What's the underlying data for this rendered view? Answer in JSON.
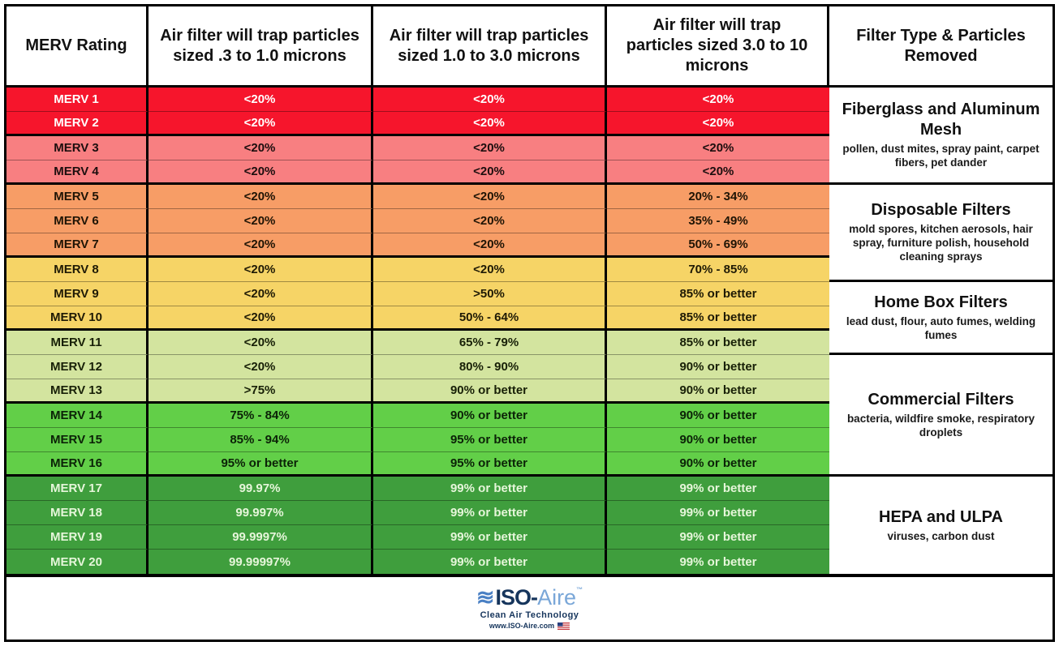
{
  "chart_data": {
    "type": "table",
    "columns": [
      "MERV Rating",
      "Air filter will trap particles sized .3 to 1.0 microns",
      "Air filter will trap particles sized 1.0 to 3.0 microns",
      "Air filter will trap particles sized 3.0 to 10 microns",
      "Filter Type & Particles Removed"
    ],
    "rows": [
      {
        "rating": "MERV 1",
        "micron_03_10": "<20%",
        "micron_10_30": "<20%",
        "micron_30_100": "<20%",
        "band": "red"
      },
      {
        "rating": "MERV 2",
        "micron_03_10": "<20%",
        "micron_10_30": "<20%",
        "micron_30_100": "<20%",
        "band": "red"
      },
      {
        "rating": "MERV 3",
        "micron_03_10": "<20%",
        "micron_10_30": "<20%",
        "micron_30_100": "<20%",
        "band": "salmon"
      },
      {
        "rating": "MERV 4",
        "micron_03_10": "<20%",
        "micron_10_30": "<20%",
        "micron_30_100": "<20%",
        "band": "salmon"
      },
      {
        "rating": "MERV 5",
        "micron_03_10": "<20%",
        "micron_10_30": "<20%",
        "micron_30_100": "20% - 34%",
        "band": "orange"
      },
      {
        "rating": "MERV 6",
        "micron_03_10": "<20%",
        "micron_10_30": "<20%",
        "micron_30_100": "35% - 49%",
        "band": "orange"
      },
      {
        "rating": "MERV 7",
        "micron_03_10": "<20%",
        "micron_10_30": "<20%",
        "micron_30_100": "50% - 69%",
        "band": "orange"
      },
      {
        "rating": "MERV 8",
        "micron_03_10": "<20%",
        "micron_10_30": "<20%",
        "micron_30_100": "70% - 85%",
        "band": "gold"
      },
      {
        "rating": "MERV 9",
        "micron_03_10": "<20%",
        "micron_10_30": ">50%",
        "micron_30_100": "85% or better",
        "band": "gold"
      },
      {
        "rating": "MERV 10",
        "micron_03_10": "<20%",
        "micron_10_30": "50% - 64%",
        "micron_30_100": "85% or better",
        "band": "gold"
      },
      {
        "rating": "MERV 11",
        "micron_03_10": "<20%",
        "micron_10_30": "65% - 79%",
        "micron_30_100": "85% or better",
        "band": "lightgreen"
      },
      {
        "rating": "MERV 12",
        "micron_03_10": "<20%",
        "micron_10_30": "80% - 90%",
        "micron_30_100": "90% or better",
        "band": "lightgreen"
      },
      {
        "rating": "MERV 13",
        "micron_03_10": ">75%",
        "micron_10_30": "90% or better",
        "micron_30_100": "90% or better",
        "band": "lightgreen"
      },
      {
        "rating": "MERV 14",
        "micron_03_10": "75% - 84%",
        "micron_10_30": "90% or better",
        "micron_30_100": "90% or better",
        "band": "green"
      },
      {
        "rating": "MERV 15",
        "micron_03_10": "85% - 94%",
        "micron_10_30": "95% or better",
        "micron_30_100": "90% or better",
        "band": "green"
      },
      {
        "rating": "MERV 16",
        "micron_03_10": "95% or better",
        "micron_10_30": "95% or better",
        "micron_30_100": "90% or better",
        "band": "green"
      },
      {
        "rating": "MERV 17",
        "micron_03_10": "99.97%",
        "micron_10_30": "99% or better",
        "micron_30_100": "99% or better",
        "band": "darkgreen"
      },
      {
        "rating": "MERV 18",
        "micron_03_10": "99.997%",
        "micron_10_30": "99% or better",
        "micron_30_100": "99% or better",
        "band": "darkgreen"
      },
      {
        "rating": "MERV 19",
        "micron_03_10": "99.9997%",
        "micron_10_30": "99% or better",
        "micron_30_100": "99% or better",
        "band": "darkgreen"
      },
      {
        "rating": "MERV 20",
        "micron_03_10": "99.99997%",
        "micron_10_30": "99% or better",
        "micron_30_100": "99% or better",
        "band": "darkgreen"
      }
    ],
    "filter_sections": [
      {
        "title": "Fiberglass and Aluminum Mesh",
        "particles": "pollen, dust mites, spray paint, carpet fibers, pet dander",
        "merv_rows": "MERV 1-4",
        "span": 4
      },
      {
        "title": "Disposable Filters",
        "particles": "mold spores, kitchen aerosols, hair spray, furniture polish, household cleaning sprays",
        "merv_rows": "MERV 5-8",
        "span": 4
      },
      {
        "title": "Home Box Filters",
        "particles": "lead dust, flour, auto fumes, welding fumes",
        "merv_rows": "MERV 9-11",
        "span": 3
      },
      {
        "title": "Commercial Filters",
        "particles": "bacteria, wildfire smoke, respiratory droplets",
        "merv_rows": "MERV 12-16",
        "span": 5
      },
      {
        "title": "HEPA and ULPA",
        "particles": "viruses, carbon dust",
        "merv_rows": "MERV 17-20",
        "span": 4
      }
    ]
  },
  "bands": {
    "red": {
      "bg": "#f6152c",
      "text": "#ffffff"
    },
    "salmon": {
      "bg": "#f87f81",
      "text": "#1c0e0e"
    },
    "orange": {
      "bg": "#f79d66",
      "text": "#1f1405"
    },
    "gold": {
      "bg": "#f6d466",
      "text": "#1f1a05"
    },
    "lightgreen": {
      "bg": "#d3e49f",
      "text": "#182007"
    },
    "green": {
      "bg": "#62cf48",
      "text": "#0b2207"
    },
    "darkgreen": {
      "bg": "#3f9e3d",
      "text": "#e6f6da"
    }
  },
  "footer": {
    "wave_icon": "≋",
    "brand_prefix": "ISO-",
    "brand_suffix": "Aire",
    "trademark": "™",
    "tagline": "Clean Air Technology",
    "url": "www.ISO-Aire.com"
  }
}
